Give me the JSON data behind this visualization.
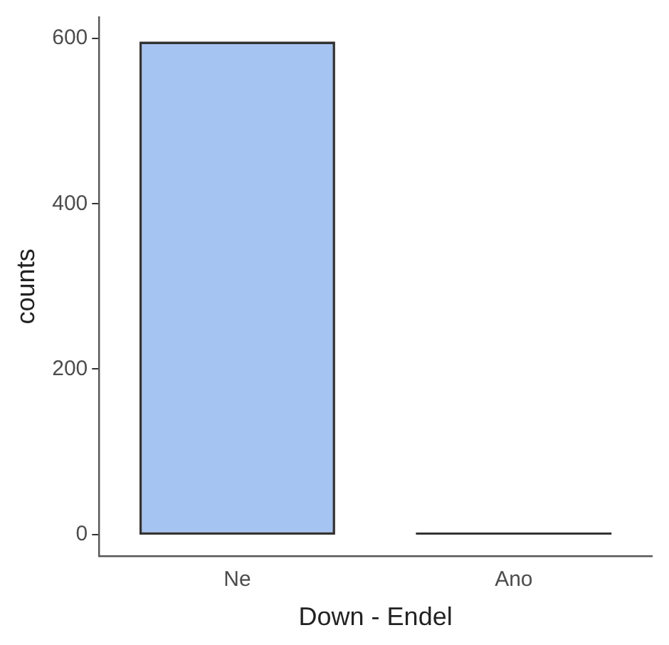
{
  "chart_data": {
    "type": "bar",
    "xlabel": "Down - Endel",
    "ylabel": "counts",
    "categories": [
      "Ne",
      "Ano"
    ],
    "values": [
      595,
      1
    ],
    "colors": [
      "#a6c4f2",
      "#333333"
    ],
    "ylim": [
      -26,
      626
    ],
    "yticks": [
      0,
      200,
      400,
      600
    ],
    "grid": false,
    "legend": false
  }
}
